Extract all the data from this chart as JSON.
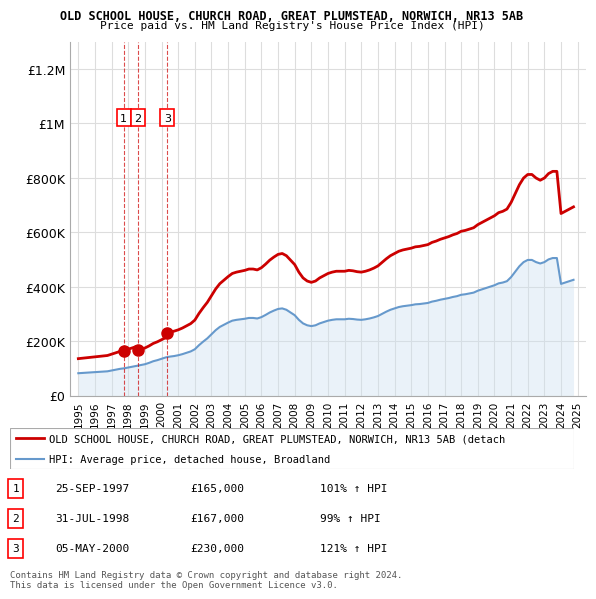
{
  "title1": "OLD SCHOOL HOUSE, CHURCH ROAD, GREAT PLUMSTEAD, NORWICH, NR13 5AB",
  "title2": "Price paid vs. HM Land Registry's House Price Index (HPI)",
  "ylabel": "",
  "xlim_start": 1994.5,
  "xlim_end": 2025.5,
  "ylim": [
    0,
    1300000
  ],
  "yticks": [
    0,
    200000,
    400000,
    600000,
    800000,
    1000000,
    1200000
  ],
  "ytick_labels": [
    "£0",
    "£200K",
    "£400K",
    "£600K",
    "£800K",
    "£1M",
    "£1.2M"
  ],
  "xticks": [
    1995,
    1996,
    1997,
    1998,
    1999,
    2000,
    2001,
    2002,
    2003,
    2004,
    2005,
    2006,
    2007,
    2008,
    2009,
    2010,
    2011,
    2012,
    2013,
    2014,
    2015,
    2016,
    2017,
    2018,
    2019,
    2020,
    2021,
    2022,
    2023,
    2024,
    2025
  ],
  "hpi_years": [
    1995,
    1995.25,
    1995.5,
    1995.75,
    1996,
    1996.25,
    1996.5,
    1996.75,
    1997,
    1997.25,
    1997.5,
    1997.75,
    1998,
    1998.25,
    1998.5,
    1998.75,
    1999,
    1999.25,
    1999.5,
    1999.75,
    2000,
    2000.25,
    2000.5,
    2000.75,
    2001,
    2001.25,
    2001.5,
    2001.75,
    2002,
    2002.25,
    2002.5,
    2002.75,
    2003,
    2003.25,
    2003.5,
    2003.75,
    2004,
    2004.25,
    2004.5,
    2004.75,
    2005,
    2005.25,
    2005.5,
    2005.75,
    2006,
    2006.25,
    2006.5,
    2006.75,
    2007,
    2007.25,
    2007.5,
    2007.75,
    2008,
    2008.25,
    2008.5,
    2008.75,
    2009,
    2009.25,
    2009.5,
    2009.75,
    2010,
    2010.25,
    2010.5,
    2010.75,
    2011,
    2011.25,
    2011.5,
    2011.75,
    2012,
    2012.25,
    2012.5,
    2012.75,
    2013,
    2013.25,
    2013.5,
    2013.75,
    2014,
    2014.25,
    2014.5,
    2014.75,
    2015,
    2015.25,
    2015.5,
    2015.75,
    2016,
    2016.25,
    2016.5,
    2016.75,
    2017,
    2017.25,
    2017.5,
    2017.75,
    2018,
    2018.25,
    2018.5,
    2018.75,
    2019,
    2019.25,
    2019.5,
    2019.75,
    2020,
    2020.25,
    2020.5,
    2020.75,
    2021,
    2021.25,
    2021.5,
    2021.75,
    2022,
    2022.25,
    2022.5,
    2022.75,
    2023,
    2023.25,
    2023.5,
    2023.75,
    2024,
    2024.25,
    2024.5,
    2024.75
  ],
  "hpi_values": [
    82000,
    83000,
    84000,
    85000,
    86000,
    87000,
    88000,
    89000,
    92000,
    95000,
    98000,
    100000,
    103000,
    106000,
    109000,
    112000,
    115000,
    120000,
    126000,
    130000,
    135000,
    140000,
    143000,
    145000,
    148000,
    152000,
    157000,
    162000,
    170000,
    185000,
    198000,
    210000,
    225000,
    240000,
    252000,
    260000,
    268000,
    275000,
    278000,
    280000,
    282000,
    285000,
    285000,
    283000,
    288000,
    296000,
    305000,
    312000,
    318000,
    320000,
    315000,
    305000,
    295000,
    278000,
    265000,
    258000,
    255000,
    258000,
    265000,
    270000,
    275000,
    278000,
    280000,
    280000,
    280000,
    282000,
    281000,
    279000,
    278000,
    280000,
    283000,
    287000,
    292000,
    300000,
    308000,
    315000,
    320000,
    325000,
    328000,
    330000,
    332000,
    335000,
    336000,
    338000,
    340000,
    345000,
    348000,
    352000,
    355000,
    358000,
    362000,
    365000,
    370000,
    372000,
    375000,
    378000,
    385000,
    390000,
    395000,
    400000,
    405000,
    412000,
    415000,
    420000,
    435000,
    455000,
    475000,
    490000,
    498000,
    498000,
    490000,
    485000,
    490000,
    500000,
    505000,
    505000,
    410000,
    415000,
    420000,
    425000
  ],
  "price_paid": [
    {
      "year": 1997.73,
      "price": 165000,
      "label": "1"
    },
    {
      "year": 1998.58,
      "price": 167000,
      "label": "2"
    },
    {
      "year": 2000.34,
      "price": 230000,
      "label": "3"
    }
  ],
  "red_line_color": "#cc0000",
  "blue_line_color": "#6699cc",
  "blue_fill_color": "#cce0f0",
  "legend_line1": "OLD SCHOOL HOUSE, CHURCH ROAD, GREAT PLUMSTEAD, NORWICH, NR13 5AB (detach",
  "legend_line2": "HPI: Average price, detached house, Broadland",
  "table_data": [
    {
      "num": "1",
      "date": "25-SEP-1997",
      "price": "£165,000",
      "hpi": "101% ↑ HPI"
    },
    {
      "num": "2",
      "date": "31-JUL-1998",
      "price": "£167,000",
      "hpi": "99% ↑ HPI"
    },
    {
      "num": "3",
      "date": "05-MAY-2000",
      "price": "£230,000",
      "hpi": "121% ↑ HPI"
    }
  ],
  "footnote": "Contains HM Land Registry data © Crown copyright and database right 2024.\nThis data is licensed under the Open Government Licence v3.0.",
  "background_color": "#ffffff",
  "grid_color": "#dddddd"
}
